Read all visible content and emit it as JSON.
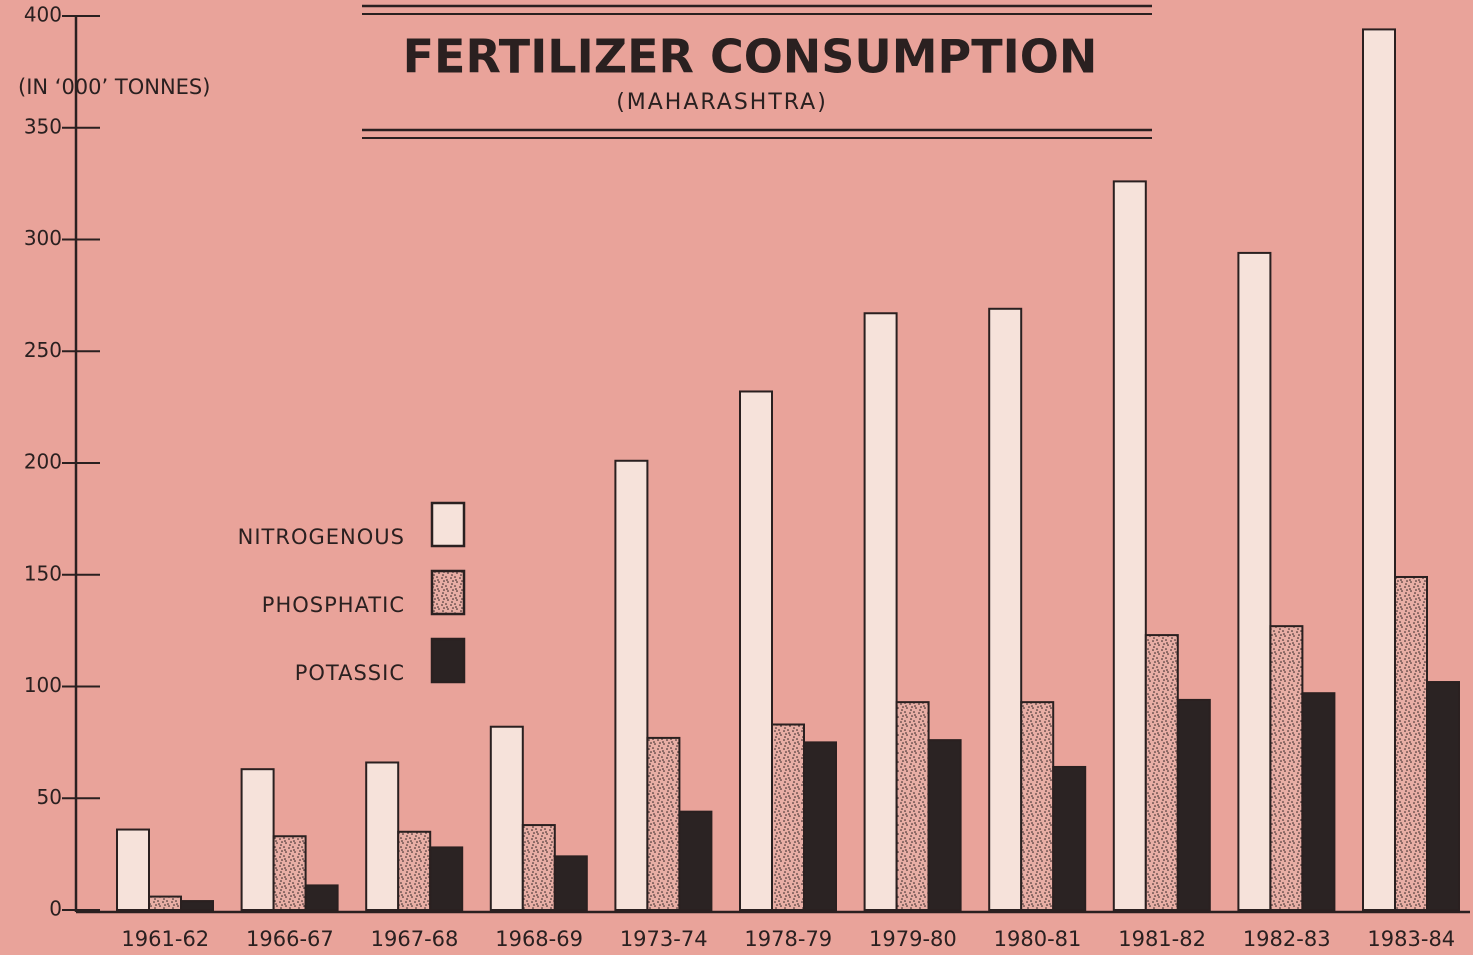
{
  "chart_data": {
    "type": "bar",
    "title": "FERTILIZER CONSUMPTION",
    "subtitle": "(MAHARASHTRA)",
    "y_label": "(IN ‘000’ TONNES)",
    "categories": [
      "1961-62",
      "1966-67",
      "1967-68",
      "1968-69",
      "1973-74",
      "1978-79",
      "1979-80",
      "1980-81",
      "1981-82",
      "1982-83",
      "1983-84"
    ],
    "series": [
      {
        "name": "NITROGENOUS",
        "color": "#f6e2da",
        "values": [
          36,
          63,
          66,
          82,
          201,
          232,
          267,
          269,
          326,
          294,
          394
        ]
      },
      {
        "name": "PHOSPHATIC",
        "color": "#e8aea5",
        "pattern": "stipple",
        "values": [
          6,
          33,
          35,
          38,
          77,
          83,
          93,
          93,
          123,
          127,
          149
        ]
      },
      {
        "name": "POTASSIC",
        "color": "#2b2323",
        "values": [
          4,
          11,
          28,
          24,
          44,
          75,
          76,
          64,
          94,
          97,
          102
        ]
      }
    ],
    "ylim": [
      0,
      400
    ],
    "yticks": [
      0,
      50,
      100,
      150,
      200,
      250,
      300,
      350,
      400
    ],
    "legend": "left"
  }
}
